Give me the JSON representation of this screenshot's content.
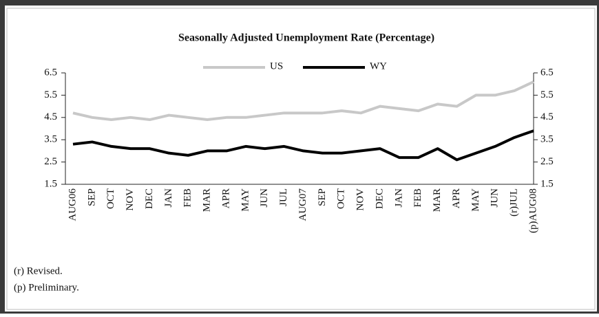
{
  "chart_data": {
    "type": "line",
    "title": "Seasonally Adjusted Unemployment Rate (Percentage)",
    "categories": [
      "AUG06",
      "SEP",
      "OCT",
      "NOV",
      "DEC",
      "JAN",
      "FEB",
      "MAR",
      "APR",
      "MAY",
      "JUN",
      "JUL",
      "AUG07",
      "SEP",
      "OCT",
      "NOV",
      "DEC",
      "JAN",
      "FEB",
      "MAR",
      "APR",
      "MAY",
      "JUN",
      "(r)JUL",
      "(p)AUG08"
    ],
    "series": [
      {
        "name": "US",
        "color": "#c8c8c8",
        "values": [
          4.7,
          4.5,
          4.4,
          4.5,
          4.4,
          4.6,
          4.5,
          4.4,
          4.5,
          4.5,
          4.6,
          4.7,
          4.7,
          4.7,
          4.8,
          4.7,
          5.0,
          4.9,
          4.8,
          5.1,
          5.0,
          5.5,
          5.5,
          5.7,
          6.1
        ]
      },
      {
        "name": "WY",
        "color": "#000000",
        "values": [
          3.3,
          3.4,
          3.2,
          3.1,
          3.1,
          2.9,
          2.8,
          3.0,
          3.0,
          3.2,
          3.1,
          3.2,
          3.0,
          2.9,
          2.9,
          3.0,
          3.1,
          2.7,
          2.7,
          3.1,
          2.6,
          2.9,
          3.2,
          3.6,
          3.9
        ]
      }
    ],
    "ylim": [
      1.5,
      6.5
    ],
    "yticks": [
      6.5,
      5.5,
      4.5,
      3.5,
      2.5,
      1.5
    ],
    "y2lim": [
      1.5,
      6.5
    ],
    "y2ticks": [
      6.5,
      5.5,
      4.5,
      3.5,
      2.5,
      1.5
    ],
    "notes": [
      "(r) Revised.",
      "(p) Preliminary."
    ]
  }
}
